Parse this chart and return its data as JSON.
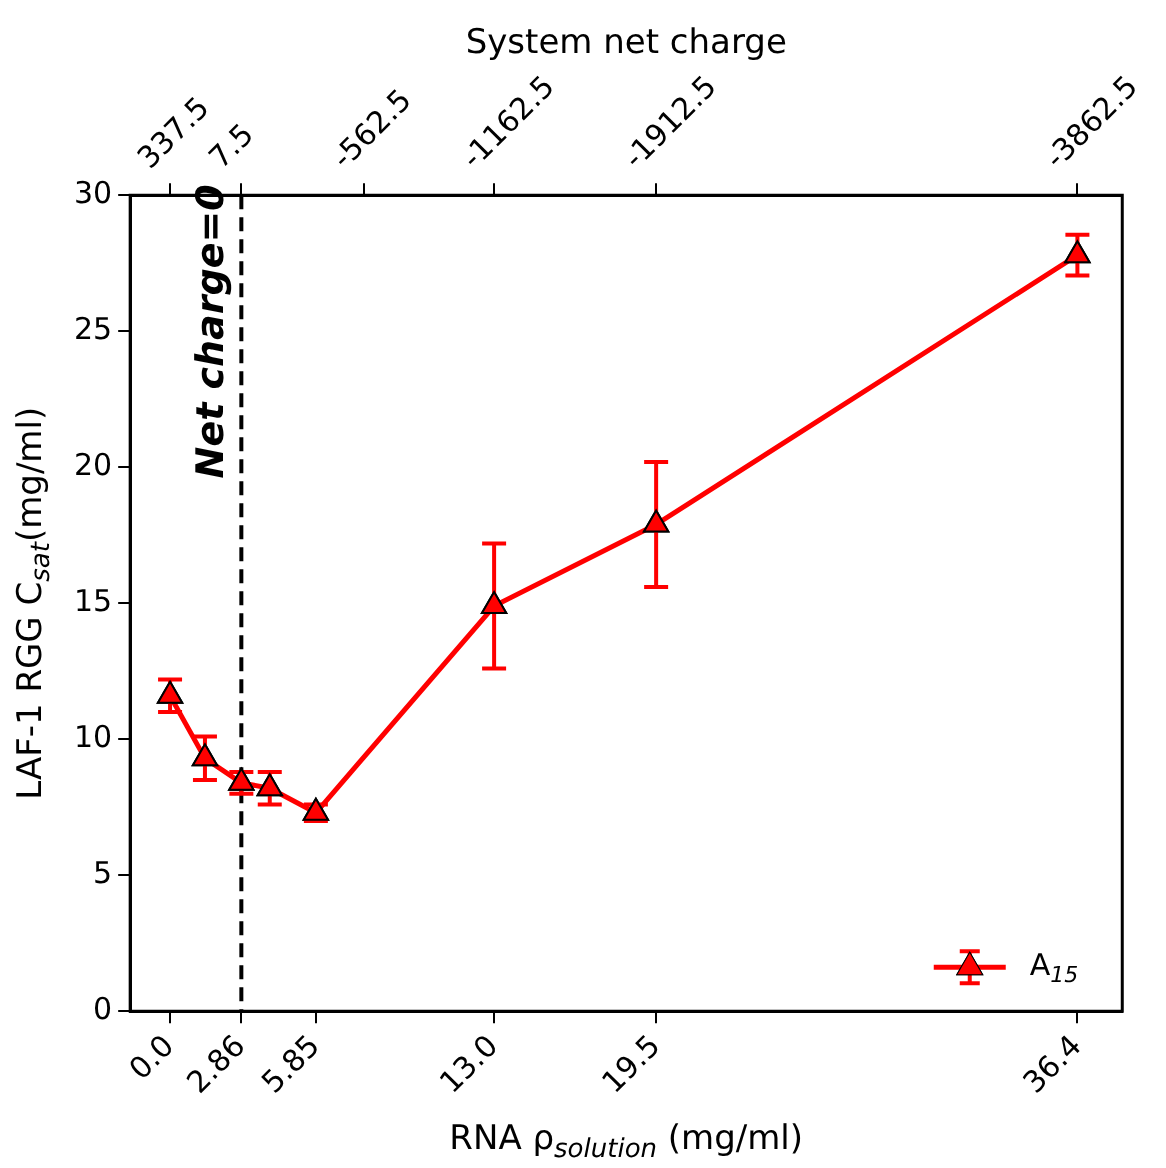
{
  "chart_data": {
    "type": "line",
    "xlabel": "RNA ρ$_{solution}$ (mg/ml)",
    "ylabel": "LAF-1 RGG C$_{sat}$(mg/ml)",
    "x2label": "System net charge",
    "x": [
      0.0,
      1.4,
      2.86,
      4.0,
      5.85,
      13.0,
      19.5,
      36.4
    ],
    "series": [
      {
        "name": "A$_{15}$",
        "color": "#ff0000",
        "values": [
          11.6,
          9.3,
          8.4,
          8.2,
          7.3,
          14.9,
          17.9,
          27.8
        ],
        "errors": [
          0.6,
          0.8,
          0.4,
          0.6,
          0.3,
          2.3,
          2.3,
          0.75
        ]
      }
    ],
    "xlim": [
      -1.6,
      38.2
    ],
    "xticks": [
      {
        "value": 0,
        "label": "0.0"
      },
      2.86,
      5.85,
      {
        "value": 13,
        "label": "13.0"
      },
      19.5,
      36.4
    ],
    "x2lim": [
      522.1,
      -4070.2
    ],
    "x2ticks": [
      337.5,
      7.5,
      -562.5,
      -1162.5,
      -1912.5,
      -3862.5
    ],
    "ylim": [
      0,
      30
    ],
    "yticks": [
      0,
      5,
      10,
      15,
      20,
      25,
      30
    ],
    "ref_lines": [
      {
        "axis": "x",
        "value": 2.86,
        "color": "#000000",
        "line_style": "dashed"
      }
    ],
    "annotations": [
      {
        "text": "Net charge=0",
        "x": 2.86,
        "y": 25
      }
    ],
    "marker": "triangle",
    "line_style": "solid",
    "legend": "bottom right",
    "grid": false
  }
}
